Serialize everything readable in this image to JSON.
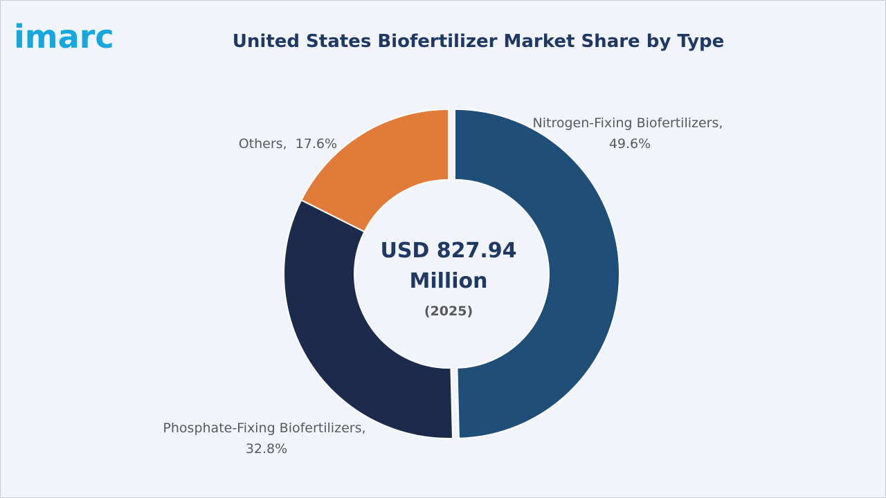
{
  "brand": {
    "logo_text": "imarc"
  },
  "chart_data": {
    "type": "pie",
    "variant": "donut",
    "title": "United States Biofertilizer Market Share by Type",
    "center_value_line1": "USD 827.94",
    "center_value_line2": "Million",
    "center_year": "(2025)",
    "unit": "%",
    "slices": [
      {
        "label": "Nitrogen-Fixing Biofertilizers,",
        "value": 49.6,
        "value_text": "49.6%",
        "color": "#1f4e79"
      },
      {
        "label": "Phosphate-Fixing Biofertilizers,",
        "value": 32.8,
        "value_text": "32.8%",
        "color": "#1c2b4b"
      },
      {
        "label": "Others,",
        "value": 17.6,
        "value_text": "17.6%",
        "color": "#e07b39"
      }
    ]
  }
}
